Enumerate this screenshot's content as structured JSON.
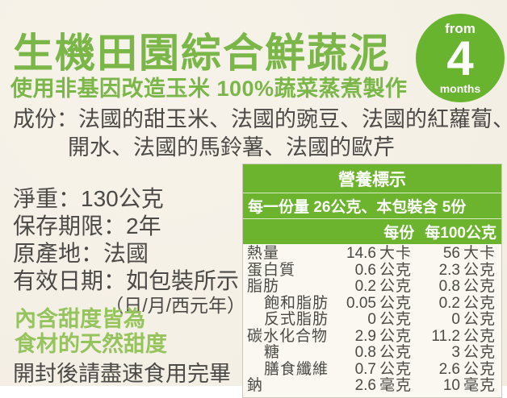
{
  "page": {
    "title": "生機田園綜合鮮蔬泥",
    "subtitle": "使用非基因改造玉米 100%蔬菜蒸煮製作"
  },
  "badge": {
    "top": "from",
    "number": "4",
    "bottom": "months"
  },
  "ingredients": {
    "line1": "成份：法國的甜玉米、法國的豌豆、法國的紅蘿蔔、",
    "line2": "開水、法國的馬鈴薯、法國的歐芹"
  },
  "info": {
    "net_weight": "淨重：130公克",
    "shelf_life": "保存期限：2年",
    "origin": "原產地：法國",
    "expiry": "有效日期：如包裝所示",
    "expiry_format": "（日/月/西元年）",
    "sweetness_line1": "內含甜度皆為",
    "sweetness_line2": "食材的天然甜度",
    "consume_note": "開封後請盡速食用完畢"
  },
  "nutrition": {
    "title": "營養標示",
    "serving_info": "每一份量 26公克、本包裝含 5份",
    "col_per_serving": "每份",
    "col_per_100g": "每100公克",
    "rows": [
      {
        "label": "熱量",
        "indent": false,
        "v1": "14.6",
        "u1": "大卡",
        "v2": "56",
        "u2": "大卡"
      },
      {
        "label": "蛋白質",
        "indent": false,
        "v1": "0.6",
        "u1": "公克",
        "v2": "2.3",
        "u2": "公克"
      },
      {
        "label": "脂肪",
        "indent": false,
        "v1": "0.2",
        "u1": "公克",
        "v2": "0.8",
        "u2": "公克"
      },
      {
        "label": "飽和脂肪",
        "indent": true,
        "v1": "0.05",
        "u1": "公克",
        "v2": "0.2",
        "u2": "公克"
      },
      {
        "label": "反式脂肪",
        "indent": true,
        "v1": "0",
        "u1": "公克",
        "v2": "0",
        "u2": "公克"
      },
      {
        "label": "碳水化合物",
        "indent": false,
        "v1": "2.9",
        "u1": "公克",
        "v2": "11.2",
        "u2": "公克"
      },
      {
        "label": "糖",
        "indent": true,
        "v1": "0.8",
        "u1": "公克",
        "v2": "3",
        "u2": "公克"
      },
      {
        "label": "膳食纖維",
        "indent": true,
        "v1": "0.7",
        "u1": "公克",
        "v2": "2.6",
        "u2": "公克"
      },
      {
        "label": "鈉",
        "indent": false,
        "v1": "2.6",
        "u1": "毫克",
        "v2": "10",
        "u2": "毫克"
      }
    ]
  },
  "colors": {
    "title_green": "#7ab648",
    "badge_green": "#68b42e",
    "table_header_green": "#6cb32e",
    "light_green_note": "#95c35c",
    "dark_text": "#4b4a46",
    "background_cream": "#f5f0e6",
    "table_body_bg": "#faf8f1"
  }
}
